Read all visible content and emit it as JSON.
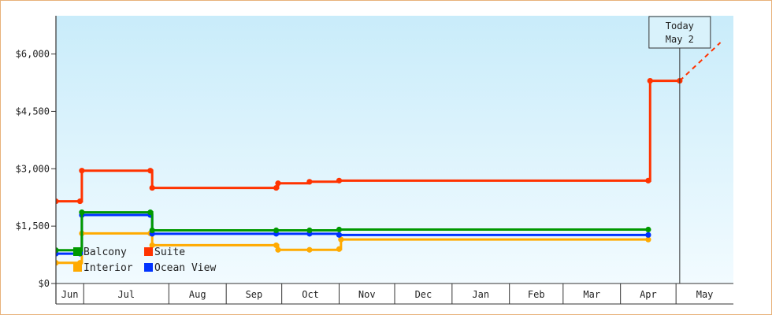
{
  "chart_data": {
    "type": "line",
    "step": true,
    "title": "",
    "xlabel": "",
    "ylabel": "",
    "ylim": [
      0,
      7000
    ],
    "y_ticks": [
      {
        "value": 0,
        "label": "$0"
      },
      {
        "value": 1500,
        "label": "$1,500"
      },
      {
        "value": 3000,
        "label": "$3,000"
      },
      {
        "value": 4500,
        "label": "$4,500"
      },
      {
        "value": 6000,
        "label": "$6,000"
      }
    ],
    "x_range": [
      "2023-05-31",
      "2024-05-31"
    ],
    "x_months": [
      {
        "label": "Jun",
        "start": "2023-05-31",
        "end": "2023-06-15"
      },
      {
        "label": "Jul",
        "start": "2023-06-15",
        "end": "2023-07-31"
      },
      {
        "label": "Aug",
        "start": "2023-07-31",
        "end": "2023-08-31"
      },
      {
        "label": "Sep",
        "start": "2023-08-31",
        "end": "2023-09-30"
      },
      {
        "label": "Oct",
        "start": "2023-09-30",
        "end": "2023-10-31"
      },
      {
        "label": "Nov",
        "start": "2023-10-31",
        "end": "2023-11-30"
      },
      {
        "label": "Dec",
        "start": "2023-11-30",
        "end": "2023-12-31"
      },
      {
        "label": "Jan",
        "start": "2023-12-31",
        "end": "2024-01-31"
      },
      {
        "label": "Feb",
        "start": "2024-01-31",
        "end": "2024-02-29"
      },
      {
        "label": "Mar",
        "start": "2024-02-29",
        "end": "2024-03-31"
      },
      {
        "label": "Apr",
        "start": "2024-03-31",
        "end": "2024-04-30"
      },
      {
        "label": "May",
        "start": "2024-04-30",
        "end": "2024-05-31"
      }
    ],
    "today": {
      "line1": "Today",
      "line2": "May 2",
      "date": "2024-05-02"
    },
    "grid": false,
    "legend_position": "bottom-left",
    "series": [
      {
        "name": "Suite",
        "color": "#ff3300",
        "points": [
          {
            "x": "2023-05-31",
            "y": 2150
          },
          {
            "x": "2023-06-13",
            "y": 2150
          },
          {
            "x": "2023-06-14",
            "y": 2950
          },
          {
            "x": "2023-07-21",
            "y": 2950
          },
          {
            "x": "2023-07-22",
            "y": 2500
          },
          {
            "x": "2023-09-27",
            "y": 2500
          },
          {
            "x": "2023-09-28",
            "y": 2620
          },
          {
            "x": "2023-10-15",
            "y": 2660
          },
          {
            "x": "2023-10-31",
            "y": 2690
          },
          {
            "x": "2024-04-15",
            "y": 2690
          },
          {
            "x": "2024-04-16",
            "y": 5300
          },
          {
            "x": "2024-05-02",
            "y": 5300
          }
        ],
        "projection": {
          "x": "2024-05-24",
          "y": 6300
        }
      },
      {
        "name": "Balcony",
        "color": "#009900",
        "points": [
          {
            "x": "2023-05-31",
            "y": 870
          },
          {
            "x": "2023-06-13",
            "y": 870
          },
          {
            "x": "2023-06-14",
            "y": 1860
          },
          {
            "x": "2023-07-21",
            "y": 1860
          },
          {
            "x": "2023-07-22",
            "y": 1390
          },
          {
            "x": "2023-09-27",
            "y": 1390
          },
          {
            "x": "2023-10-15",
            "y": 1390
          },
          {
            "x": "2023-10-31",
            "y": 1410
          },
          {
            "x": "2024-04-15",
            "y": 1410
          }
        ]
      },
      {
        "name": "Ocean View",
        "color": "#0033ff",
        "points": [
          {
            "x": "2023-05-31",
            "y": 780
          },
          {
            "x": "2023-06-13",
            "y": 780
          },
          {
            "x": "2023-06-14",
            "y": 1790
          },
          {
            "x": "2023-07-21",
            "y": 1790
          },
          {
            "x": "2023-07-22",
            "y": 1300
          },
          {
            "x": "2023-09-27",
            "y": 1300
          },
          {
            "x": "2023-10-15",
            "y": 1300
          },
          {
            "x": "2023-10-31",
            "y": 1270
          },
          {
            "x": "2024-04-15",
            "y": 1270
          }
        ]
      },
      {
        "name": "Interior",
        "color": "#ffaa00",
        "points": [
          {
            "x": "2023-05-31",
            "y": 540
          },
          {
            "x": "2023-06-13",
            "y": 540
          },
          {
            "x": "2023-06-14",
            "y": 1310
          },
          {
            "x": "2023-07-21",
            "y": 1310
          },
          {
            "x": "2023-07-22",
            "y": 1000
          },
          {
            "x": "2023-09-27",
            "y": 1000
          },
          {
            "x": "2023-09-28",
            "y": 880
          },
          {
            "x": "2023-10-15",
            "y": 880
          },
          {
            "x": "2023-10-31",
            "y": 900
          },
          {
            "x": "2023-11-01",
            "y": 1150
          },
          {
            "x": "2024-04-15",
            "y": 1150
          }
        ]
      }
    ],
    "legend": [
      {
        "name": "Balcony",
        "color": "#009900"
      },
      {
        "name": "Suite",
        "color": "#ff3300"
      },
      {
        "name": "Interior",
        "color": "#ffaa00"
      },
      {
        "name": "Ocean View",
        "color": "#0033ff"
      }
    ]
  }
}
